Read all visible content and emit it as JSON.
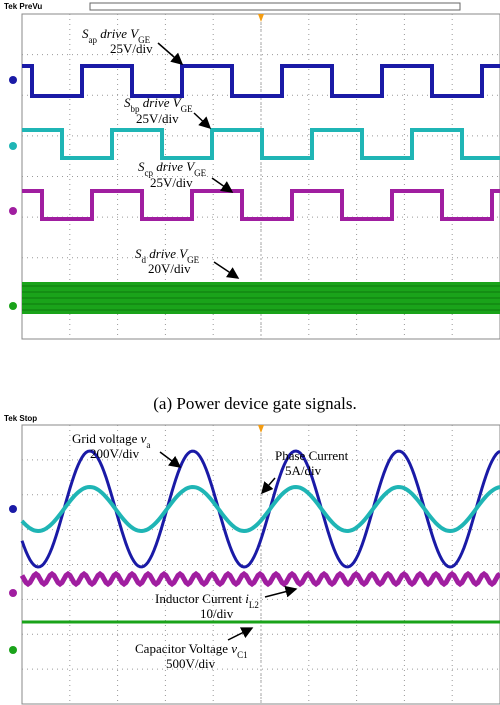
{
  "top_scope": {
    "header": "Tek PreVu",
    "labels": [
      {
        "name": [
          "S",
          "ap",
          " drive V",
          "GE"
        ],
        "scale": "25V/div"
      },
      {
        "name": [
          "S",
          "bp",
          " drive V",
          "GE"
        ],
        "scale": "25V/div"
      },
      {
        "name": [
          "S",
          "cp",
          " drive V",
          "GE"
        ],
        "scale": "25V/div"
      },
      {
        "name": [
          "S",
          "d",
          " drive V",
          "GE"
        ],
        "scale": "20V/div"
      }
    ]
  },
  "caption": "(a) Power device gate signals.",
  "bottom_scope": {
    "header": "Tek Stop",
    "labels": [
      {
        "name": [
          "Grid voltage ",
          "",
          "v",
          "a"
        ],
        "scale": "200V/div"
      },
      {
        "name": [
          "Phase Current"
        ],
        "scale": "5A/div"
      },
      {
        "name": [
          "Inductor Current ",
          "",
          "i",
          "L2"
        ],
        "scale": "10/div"
      },
      {
        "name": [
          "Capacitor Voltage ",
          "",
          "v",
          "C1"
        ],
        "scale": "500V/div"
      }
    ]
  }
}
